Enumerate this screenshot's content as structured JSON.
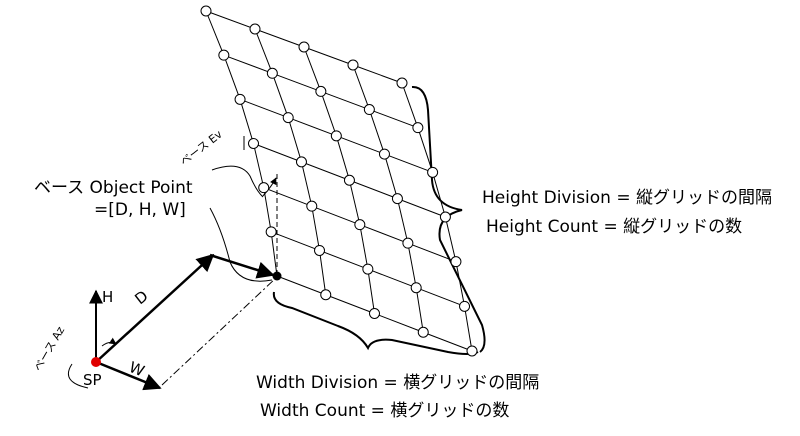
{
  "labels": {
    "base_object_point_line1": "ベース Object Point",
    "base_object_point_line2": "=[D, H, W]",
    "base_ev": "ベース Ev",
    "base_az": "ベース Az",
    "h_axis": "H",
    "d_axis": "D",
    "w_axis": "W",
    "sp": "SP",
    "height_division": "Height Division = 縦グリッドの間隔",
    "height_count": "Height Count = 縦グリッドの数",
    "width_division": "Width Division = 横グリッドの間隔",
    "width_count": "Width Count = 横グリッドの数"
  },
  "colors": {
    "line": "#000000",
    "node_fill": "#ffffff",
    "sp_point": "#e00000",
    "object_point": "#000000"
  }
}
